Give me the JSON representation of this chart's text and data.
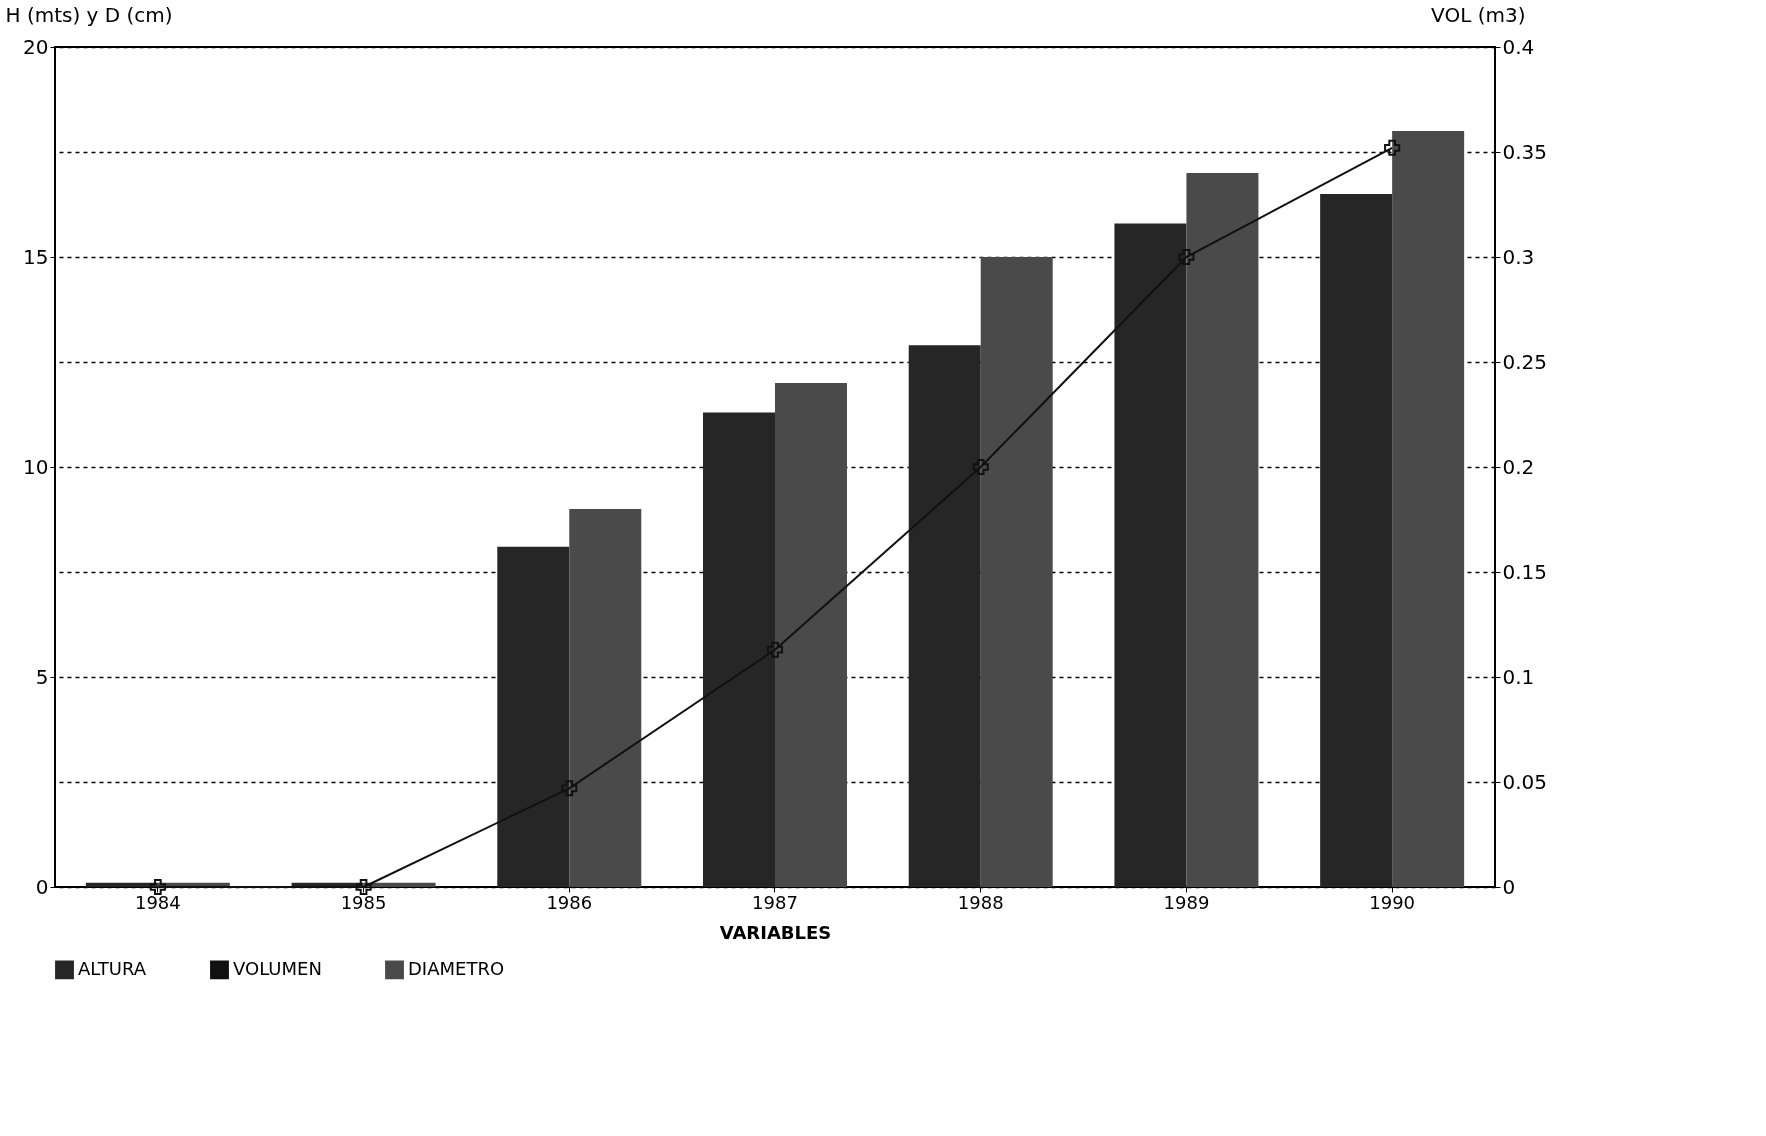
{
  "chart_data": {
    "type": "bar",
    "xlabel": "VARIABLES",
    "ylabel": "H (mts) y D (cm)",
    "y2label": "VOL (m3)",
    "categories": [
      "1984",
      "1985",
      "1986",
      "1987",
      "1988",
      "1989",
      "1990"
    ],
    "series": [
      {
        "name": "ALTURA",
        "color": "#262626",
        "values": [
          0.1,
          0.1,
          8.1,
          11.3,
          12.9,
          15.8,
          16.5
        ]
      },
      {
        "name": "VOLUMEN",
        "color": "#111111",
        "type": "line",
        "axis": "y2",
        "marker": "cross",
        "values": [
          0,
          0,
          0.047,
          0.113,
          0.2,
          0.3,
          0.352
        ]
      },
      {
        "name": "DIAMETRO",
        "color": "#4a4a4a",
        "values": [
          0.1,
          0.1,
          9.0,
          12.0,
          15.0,
          17.0,
          18.0
        ]
      }
    ],
    "ylim": [
      0,
      20
    ],
    "yticks": [
      0,
      5,
      10,
      15,
      20
    ],
    "y2lim": [
      0,
      0.4
    ],
    "y2ticks": [
      0,
      0.05,
      0.1,
      0.15,
      0.2,
      0.25,
      0.3,
      0.35,
      0.4
    ],
    "grid": "y",
    "legend": "bottom"
  }
}
